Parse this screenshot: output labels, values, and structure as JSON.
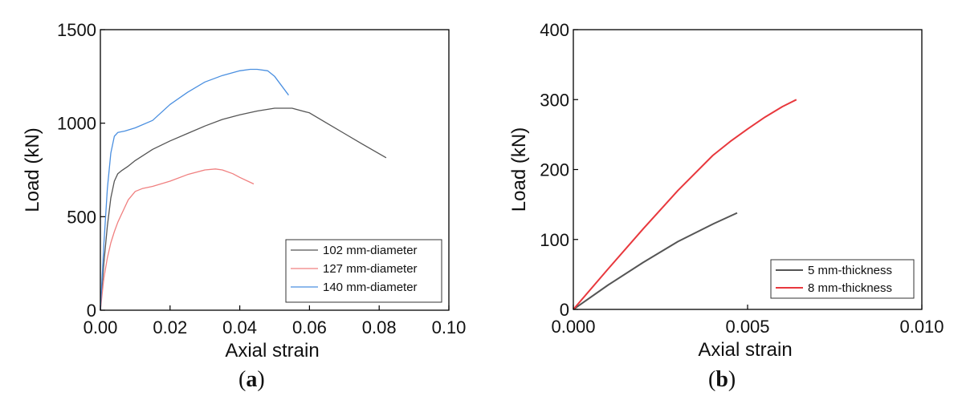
{
  "chart_data": [
    {
      "type": "line",
      "panel_caption": "a",
      "xlabel": "Axial strain",
      "ylabel": "Load (kN)",
      "xlim": [
        0,
        0.1
      ],
      "ylim": [
        0,
        1500
      ],
      "xticks": [
        0.0,
        0.02,
        0.04,
        0.06,
        0.08,
        0.1
      ],
      "xtick_labels": [
        "0.00",
        "0.02",
        "0.04",
        "0.06",
        "0.08",
        "0.10"
      ],
      "yticks": [
        0,
        500,
        1000,
        1500
      ],
      "ytick_labels": [
        "0",
        "500",
        "1000",
        "1500"
      ],
      "legend_position": "bottom-right",
      "grid": false,
      "series": [
        {
          "name": "102 mm-diameter",
          "color": "#555555",
          "x": [
            0,
            0.001,
            0.002,
            0.003,
            0.004,
            0.005,
            0.006,
            0.008,
            0.01,
            0.015,
            0.02,
            0.025,
            0.03,
            0.035,
            0.04,
            0.045,
            0.05,
            0.055,
            0.06,
            0.065,
            0.07,
            0.075,
            0.082
          ],
          "y": [
            0,
            250,
            450,
            600,
            690,
            730,
            745,
            770,
            800,
            860,
            905,
            945,
            985,
            1020,
            1045,
            1065,
            1080,
            1080,
            1055,
            1000,
            945,
            890,
            815
          ]
        },
        {
          "name": "127 mm-diameter",
          "color": "#f08080",
          "x": [
            0,
            0.001,
            0.002,
            0.003,
            0.004,
            0.005,
            0.006,
            0.008,
            0.01,
            0.012,
            0.015,
            0.02,
            0.025,
            0.03,
            0.033,
            0.035,
            0.038,
            0.04,
            0.044
          ],
          "y": [
            0,
            170,
            280,
            360,
            420,
            470,
            510,
            590,
            635,
            650,
            662,
            690,
            725,
            750,
            755,
            750,
            730,
            710,
            675
          ]
        },
        {
          "name": "140 mm-diameter",
          "color": "#4a8fe0",
          "x": [
            0,
            0.001,
            0.002,
            0.003,
            0.004,
            0.005,
            0.007,
            0.01,
            0.015,
            0.02,
            0.025,
            0.03,
            0.035,
            0.04,
            0.043,
            0.045,
            0.048,
            0.05,
            0.054
          ],
          "y": [
            0,
            350,
            650,
            840,
            930,
            950,
            958,
            975,
            1015,
            1100,
            1165,
            1220,
            1255,
            1280,
            1288,
            1288,
            1280,
            1250,
            1150
          ]
        }
      ]
    },
    {
      "type": "line",
      "panel_caption": "b",
      "xlabel": "Axial strain",
      "ylabel": "Load (kN)",
      "xlim": [
        0,
        0.01
      ],
      "ylim": [
        0,
        400
      ],
      "xticks": [
        0.0,
        0.005,
        0.01
      ],
      "xtick_labels": [
        "0.000",
        "0.005",
        "0.010"
      ],
      "yticks": [
        0,
        100,
        200,
        300,
        400
      ],
      "ytick_labels": [
        "0",
        "100",
        "200",
        "300",
        "400"
      ],
      "legend_position": "bottom-right",
      "grid": false,
      "series": [
        {
          "name": "5 mm-thickness",
          "color": "#555555",
          "x": [
            0,
            0.001,
            0.002,
            0.003,
            0.004,
            0.0047
          ],
          "y": [
            0,
            35,
            67,
            97,
            122,
            138
          ]
        },
        {
          "name": "8 mm-thickness",
          "color": "#e8383d",
          "x": [
            0,
            0.001,
            0.002,
            0.003,
            0.004,
            0.0045,
            0.005,
            0.0055,
            0.006,
            0.0064
          ],
          "y": [
            0,
            58,
            115,
            170,
            220,
            240,
            258,
            275,
            290,
            300
          ]
        }
      ]
    }
  ]
}
